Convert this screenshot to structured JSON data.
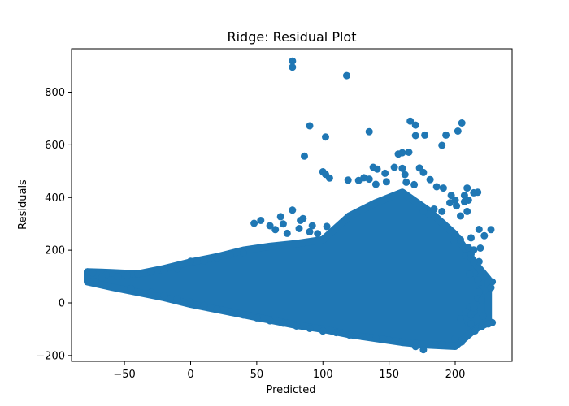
{
  "chart_data": {
    "type": "scatter",
    "title": "Ridge: Residual Plot",
    "xlabel": "Predicted",
    "ylabel": "Residuals",
    "xlim": [
      -90,
      243
    ],
    "ylim": [
      -222,
      965
    ],
    "xticks": [
      -50,
      0,
      50,
      100,
      150,
      200
    ],
    "yticks": [
      -200,
      0,
      200,
      400,
      600,
      800
    ],
    "xtick_labels": [
      "−50",
      "0",
      "50",
      "100",
      "150",
      "200"
    ],
    "ytick_labels": [
      "−200",
      "0",
      "200",
      "400",
      "600",
      "800"
    ],
    "grid": false,
    "color": "#1f77b4",
    "series": [
      {
        "bulk_band": {
          "description_only_for_renderer": false,
          "x": [
            -78,
            -60,
            -40,
            -20,
            0,
            20,
            40,
            60,
            80,
            100,
            120,
            140,
            160,
            180,
            200,
            215,
            225
          ],
          "upper": [
            118,
            115,
            110,
            130,
            155,
            175,
            200,
            215,
            225,
            240,
            330,
            380,
            420,
            350,
            260,
            150,
            90
          ],
          "lower": [
            80,
            60,
            40,
            20,
            -5,
            -25,
            -45,
            -65,
            -85,
            -100,
            -120,
            -135,
            -150,
            -160,
            -165,
            -100,
            -75
          ]
        },
        "points": [
          [
            77,
            918
          ],
          [
            77,
            895
          ],
          [
            118,
            863
          ],
          [
            90,
            672
          ],
          [
            102,
            630
          ],
          [
            86,
            557
          ],
          [
            135,
            650
          ],
          [
            166,
            690
          ],
          [
            170,
            675
          ],
          [
            205,
            683
          ],
          [
            170,
            635
          ],
          [
            177,
            637
          ],
          [
            193,
            637
          ],
          [
            202,
            652
          ],
          [
            190,
            598
          ],
          [
            165,
            572
          ],
          [
            160,
            570
          ],
          [
            157,
            565
          ],
          [
            100,
            498
          ],
          [
            102,
            488
          ],
          [
            105,
            474
          ],
          [
            138,
            515
          ],
          [
            141,
            508
          ],
          [
            147,
            492
          ],
          [
            154,
            515
          ],
          [
            160,
            511
          ],
          [
            173,
            512
          ],
          [
            176,
            495
          ],
          [
            162,
            487
          ],
          [
            181,
            468
          ],
          [
            131,
            475
          ],
          [
            135,
            470
          ],
          [
            127,
            465
          ],
          [
            119,
            466
          ],
          [
            163,
            458
          ],
          [
            169,
            449
          ],
          [
            140,
            450
          ],
          [
            148,
            460
          ],
          [
            186,
            441
          ],
          [
            191,
            436
          ],
          [
            209,
            436
          ],
          [
            217,
            420
          ],
          [
            214,
            418
          ],
          [
            207,
            408
          ],
          [
            197,
            408
          ],
          [
            200,
            390
          ],
          [
            227,
            278
          ],
          [
            218,
            279
          ],
          [
            222,
            255
          ],
          [
            77,
            352
          ],
          [
            68,
            327
          ],
          [
            85,
            320
          ],
          [
            83,
            313
          ],
          [
            53,
            313
          ],
          [
            48,
            302
          ],
          [
            60,
            293
          ],
          [
            70,
            300
          ],
          [
            64,
            278
          ],
          [
            82,
            282
          ],
          [
            73,
            264
          ],
          [
            90,
            270
          ],
          [
            96,
            263
          ],
          [
            92,
            293
          ],
          [
            103,
            290
          ],
          [
            -78,
            118
          ],
          [
            -74,
            114
          ],
          [
            -72,
            80
          ],
          [
            -76,
            80
          ],
          [
            -64,
            106
          ],
          [
            -67,
            96
          ],
          [
            -55,
            100
          ],
          [
            -48,
            105
          ],
          [
            -40,
            110
          ],
          [
            -30,
            118
          ],
          [
            -20,
            122
          ],
          [
            -10,
            130
          ],
          [
            0,
            158
          ],
          [
            10,
            160
          ],
          [
            20,
            168
          ],
          [
            30,
            183
          ],
          [
            40,
            190
          ],
          [
            -45,
            55
          ],
          [
            -30,
            40
          ],
          [
            -20,
            28
          ],
          [
            -10,
            16
          ],
          [
            0,
            2
          ],
          [
            10,
            -10
          ],
          [
            20,
            -24
          ],
          [
            30,
            -35
          ],
          [
            40,
            -46
          ],
          [
            50,
            -57
          ],
          [
            60,
            -68
          ],
          [
            70,
            -77
          ],
          [
            80,
            -88
          ],
          [
            90,
            -97
          ],
          [
            100,
            -107
          ],
          [
            110,
            -113
          ],
          [
            120,
            -122
          ],
          [
            130,
            -128
          ],
          [
            140,
            -134
          ],
          [
            150,
            -142
          ],
          [
            160,
            -150
          ],
          [
            170,
            -166
          ],
          [
            176,
            -178
          ],
          [
            185,
            -160
          ],
          [
            190,
            -158
          ],
          [
            200,
            -135
          ],
          [
            205,
            -148
          ],
          [
            215,
            -106
          ],
          [
            220,
            -90
          ],
          [
            225,
            -80
          ],
          [
            228,
            -75
          ],
          [
            228,
            80
          ],
          [
            227,
            58
          ],
          [
            222,
            47
          ],
          [
            219,
            52
          ],
          [
            218,
            42
          ],
          [
            217,
            17
          ],
          [
            220,
            10
          ],
          [
            211,
            -15
          ],
          [
            208,
            -35
          ],
          [
            204,
            -60
          ],
          [
            210,
            -78
          ],
          [
            212,
            -80
          ],
          [
            212,
            -46
          ],
          [
            214,
            -32
          ],
          [
            214,
            -18
          ],
          [
            221,
            -50
          ],
          [
            219,
            97
          ],
          [
            217,
            88
          ],
          [
            213,
            113
          ],
          [
            211,
            109
          ],
          [
            218,
            157
          ],
          [
            214,
            155
          ],
          [
            208,
            180
          ],
          [
            210,
            210
          ],
          [
            212,
            185
          ],
          [
            214,
            201
          ],
          [
            219,
            208
          ],
          [
            212,
            247
          ],
          [
            204,
            240
          ],
          [
            199,
            236
          ],
          [
            204,
            330
          ],
          [
            209,
            347
          ],
          [
            201,
            368
          ],
          [
            196,
            380
          ],
          [
            207,
            384
          ],
          [
            210,
            390
          ],
          [
            190,
            347
          ],
          [
            184,
            356
          ],
          [
            180,
            337
          ],
          [
            176,
            348
          ]
        ]
      }
    ]
  }
}
